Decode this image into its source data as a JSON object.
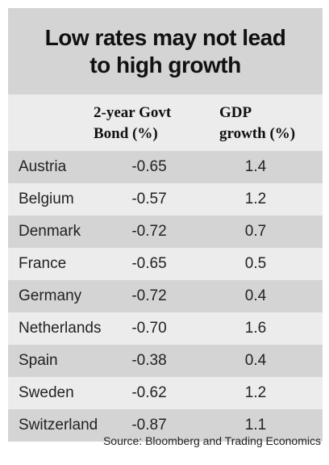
{
  "title": {
    "line1": "Low rates may not lead",
    "line2": "to high growth"
  },
  "headers": {
    "bond_line1": "2-year Govt",
    "bond_line2": "Bond (%)",
    "gdp_line1": "GDP",
    "gdp_line2": "growth (%)"
  },
  "chart_data": {
    "type": "table",
    "columns": [
      "",
      "2-year Govt Bond (%)",
      "GDP growth (%)"
    ],
    "rows": [
      [
        "Austria",
        "-0.65",
        "1.4"
      ],
      [
        "Belgium",
        "-0.57",
        "1.2"
      ],
      [
        "Denmark",
        "-0.72",
        "0.7"
      ],
      [
        "France",
        "-0.65",
        "0.5"
      ],
      [
        "Germany",
        "-0.72",
        "0.4"
      ],
      [
        "Netherlands",
        "-0.70",
        "1.6"
      ],
      [
        "Spain",
        "-0.38",
        "0.4"
      ],
      [
        "Sweden",
        "-0.62",
        "1.2"
      ],
      [
        "Switzerland",
        "-0.87",
        "1.1"
      ]
    ]
  },
  "source": "Source: Bloomberg and Trading Economics",
  "colors": {
    "band_dark": "#d4d4d4",
    "band_light": "#ececec"
  }
}
